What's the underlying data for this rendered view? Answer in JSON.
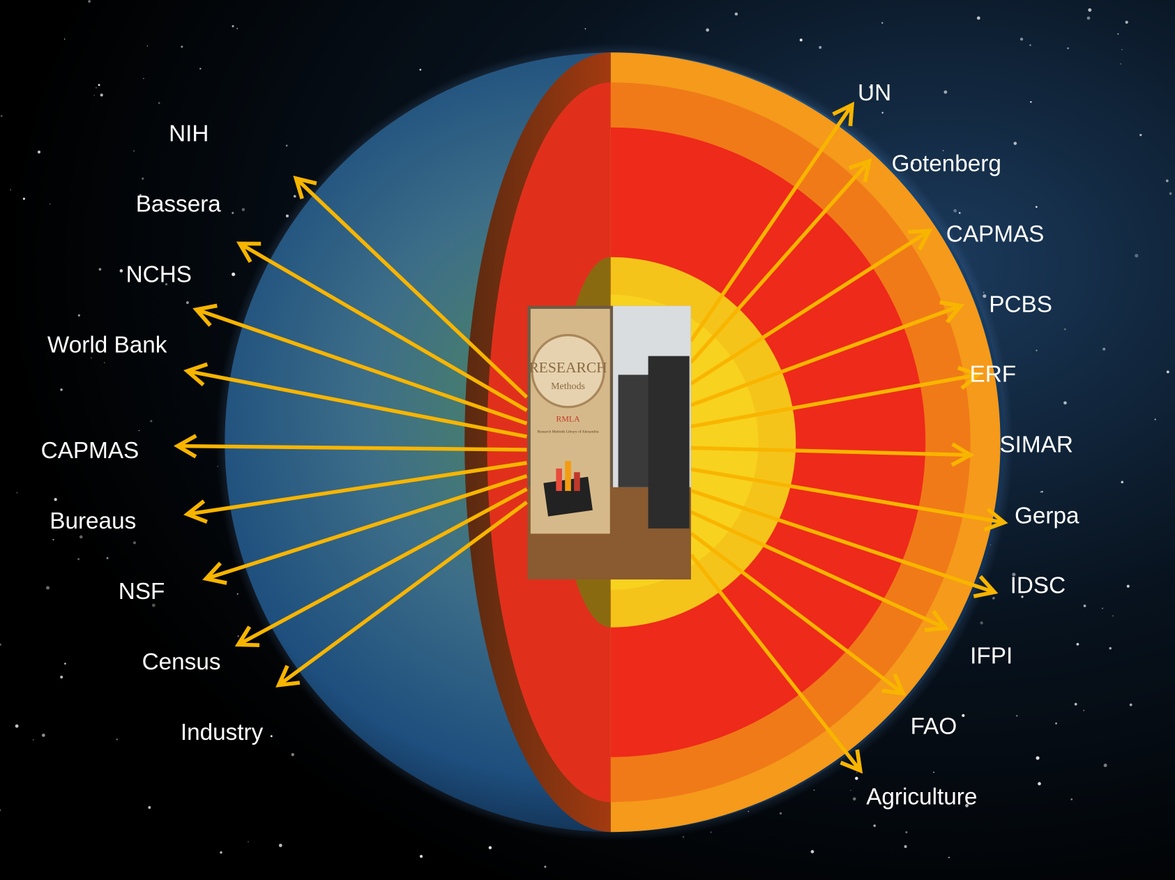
{
  "left_labels": [
    "NIH",
    "Bassera",
    "NCHS",
    "World Bank",
    "CAPMAS",
    "Bureaus",
    "NSF",
    "Census",
    "Industry"
  ],
  "right_labels": [
    "UN",
    "Gotenberg",
    "CAPMAS",
    "PCBS",
    "ERF",
    "SIMAR",
    "Gerpa",
    "IDSC",
    "IFPI",
    "FAO",
    "Agriculture"
  ],
  "poster": {
    "title": "RESEARCH",
    "subtitle": "Methods",
    "acronym": "RMLA",
    "name": "Research Methods Library of Alexandria"
  }
}
